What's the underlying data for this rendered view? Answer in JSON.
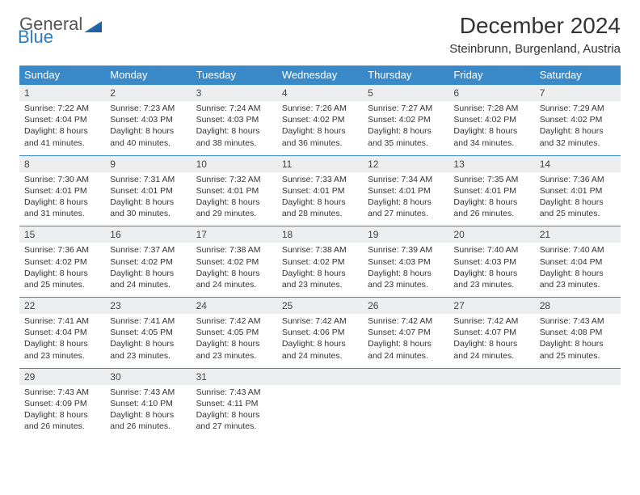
{
  "brand": {
    "part1": "General",
    "part2": "Blue"
  },
  "title": "December 2024",
  "location": "Steinbrunn, Burgenland, Austria",
  "colors": {
    "header_bg": "#3a8ac9",
    "header_text": "#ffffff",
    "daynum_bg": "#eceeef",
    "row_divider": "#3a8ac9",
    "text": "#333333",
    "brand_blue": "#2e7cc0"
  },
  "weekdays": [
    "Sunday",
    "Monday",
    "Tuesday",
    "Wednesday",
    "Thursday",
    "Friday",
    "Saturday"
  ],
  "weeks": [
    [
      {
        "n": "1",
        "sr": "7:22 AM",
        "ss": "4:04 PM",
        "dl": "8 hours and 41 minutes."
      },
      {
        "n": "2",
        "sr": "7:23 AM",
        "ss": "4:03 PM",
        "dl": "8 hours and 40 minutes."
      },
      {
        "n": "3",
        "sr": "7:24 AM",
        "ss": "4:03 PM",
        "dl": "8 hours and 38 minutes."
      },
      {
        "n": "4",
        "sr": "7:26 AM",
        "ss": "4:02 PM",
        "dl": "8 hours and 36 minutes."
      },
      {
        "n": "5",
        "sr": "7:27 AM",
        "ss": "4:02 PM",
        "dl": "8 hours and 35 minutes."
      },
      {
        "n": "6",
        "sr": "7:28 AM",
        "ss": "4:02 PM",
        "dl": "8 hours and 34 minutes."
      },
      {
        "n": "7",
        "sr": "7:29 AM",
        "ss": "4:02 PM",
        "dl": "8 hours and 32 minutes."
      }
    ],
    [
      {
        "n": "8",
        "sr": "7:30 AM",
        "ss": "4:01 PM",
        "dl": "8 hours and 31 minutes."
      },
      {
        "n": "9",
        "sr": "7:31 AM",
        "ss": "4:01 PM",
        "dl": "8 hours and 30 minutes."
      },
      {
        "n": "10",
        "sr": "7:32 AM",
        "ss": "4:01 PM",
        "dl": "8 hours and 29 minutes."
      },
      {
        "n": "11",
        "sr": "7:33 AM",
        "ss": "4:01 PM",
        "dl": "8 hours and 28 minutes."
      },
      {
        "n": "12",
        "sr": "7:34 AM",
        "ss": "4:01 PM",
        "dl": "8 hours and 27 minutes."
      },
      {
        "n": "13",
        "sr": "7:35 AM",
        "ss": "4:01 PM",
        "dl": "8 hours and 26 minutes."
      },
      {
        "n": "14",
        "sr": "7:36 AM",
        "ss": "4:01 PM",
        "dl": "8 hours and 25 minutes."
      }
    ],
    [
      {
        "n": "15",
        "sr": "7:36 AM",
        "ss": "4:02 PM",
        "dl": "8 hours and 25 minutes."
      },
      {
        "n": "16",
        "sr": "7:37 AM",
        "ss": "4:02 PM",
        "dl": "8 hours and 24 minutes."
      },
      {
        "n": "17",
        "sr": "7:38 AM",
        "ss": "4:02 PM",
        "dl": "8 hours and 24 minutes."
      },
      {
        "n": "18",
        "sr": "7:38 AM",
        "ss": "4:02 PM",
        "dl": "8 hours and 23 minutes."
      },
      {
        "n": "19",
        "sr": "7:39 AM",
        "ss": "4:03 PM",
        "dl": "8 hours and 23 minutes."
      },
      {
        "n": "20",
        "sr": "7:40 AM",
        "ss": "4:03 PM",
        "dl": "8 hours and 23 minutes."
      },
      {
        "n": "21",
        "sr": "7:40 AM",
        "ss": "4:04 PM",
        "dl": "8 hours and 23 minutes."
      }
    ],
    [
      {
        "n": "22",
        "sr": "7:41 AM",
        "ss": "4:04 PM",
        "dl": "8 hours and 23 minutes."
      },
      {
        "n": "23",
        "sr": "7:41 AM",
        "ss": "4:05 PM",
        "dl": "8 hours and 23 minutes."
      },
      {
        "n": "24",
        "sr": "7:42 AM",
        "ss": "4:05 PM",
        "dl": "8 hours and 23 minutes."
      },
      {
        "n": "25",
        "sr": "7:42 AM",
        "ss": "4:06 PM",
        "dl": "8 hours and 24 minutes."
      },
      {
        "n": "26",
        "sr": "7:42 AM",
        "ss": "4:07 PM",
        "dl": "8 hours and 24 minutes."
      },
      {
        "n": "27",
        "sr": "7:42 AM",
        "ss": "4:07 PM",
        "dl": "8 hours and 24 minutes."
      },
      {
        "n": "28",
        "sr": "7:43 AM",
        "ss": "4:08 PM",
        "dl": "8 hours and 25 minutes."
      }
    ],
    [
      {
        "n": "29",
        "sr": "7:43 AM",
        "ss": "4:09 PM",
        "dl": "8 hours and 26 minutes."
      },
      {
        "n": "30",
        "sr": "7:43 AM",
        "ss": "4:10 PM",
        "dl": "8 hours and 26 minutes."
      },
      {
        "n": "31",
        "sr": "7:43 AM",
        "ss": "4:11 PM",
        "dl": "8 hours and 27 minutes."
      },
      null,
      null,
      null,
      null
    ]
  ],
  "labels": {
    "sunrise": "Sunrise:",
    "sunset": "Sunset:",
    "daylight": "Daylight:"
  }
}
